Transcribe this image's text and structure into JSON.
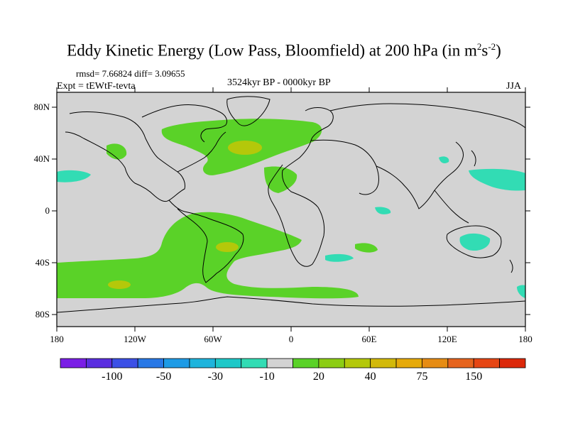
{
  "title": {
    "main": "Eddy Kinetic Energy (Low Pass, Bloomfield) at 200 hPa (in m",
    "sup1": "2",
    "mid": "s",
    "sup2": "-2",
    "end": ")"
  },
  "stats": "rmsd= 7.66824 diff= 3.09655",
  "experiment": "Expt = tEWtF-tevta",
  "period": "3524kyr BP - 0000kyr BP",
  "season": "JJA",
  "lat_ticks": [
    "80N",
    "40N",
    "0",
    "40S",
    "80S"
  ],
  "lon_ticks": [
    "180",
    "120W",
    "60W",
    "0",
    "60E",
    "120E",
    "180"
  ],
  "colorbar": {
    "colors": [
      "#7a1ee6",
      "#5a2ee0",
      "#3c50e6",
      "#2878e6",
      "#1e9be6",
      "#1eb4dc",
      "#1ec8c8",
      "#32dcb4",
      "#d3d3d3",
      "#5ad228",
      "#8ccd14",
      "#b4c80a",
      "#d2b90a",
      "#e6aa0a",
      "#e68c14",
      "#e6641e",
      "#e64614",
      "#dc280a"
    ],
    "labels": [
      "-100",
      "-50",
      "-30",
      "-10",
      "20",
      "40",
      "75",
      "150"
    ]
  },
  "colors": {
    "ocean_land_neutral": "#d3d3d3",
    "positive_green": "#5ad228",
    "positive_yellowgreen": "#b4c80a",
    "negative_cyan": "#32dcb4"
  }
}
